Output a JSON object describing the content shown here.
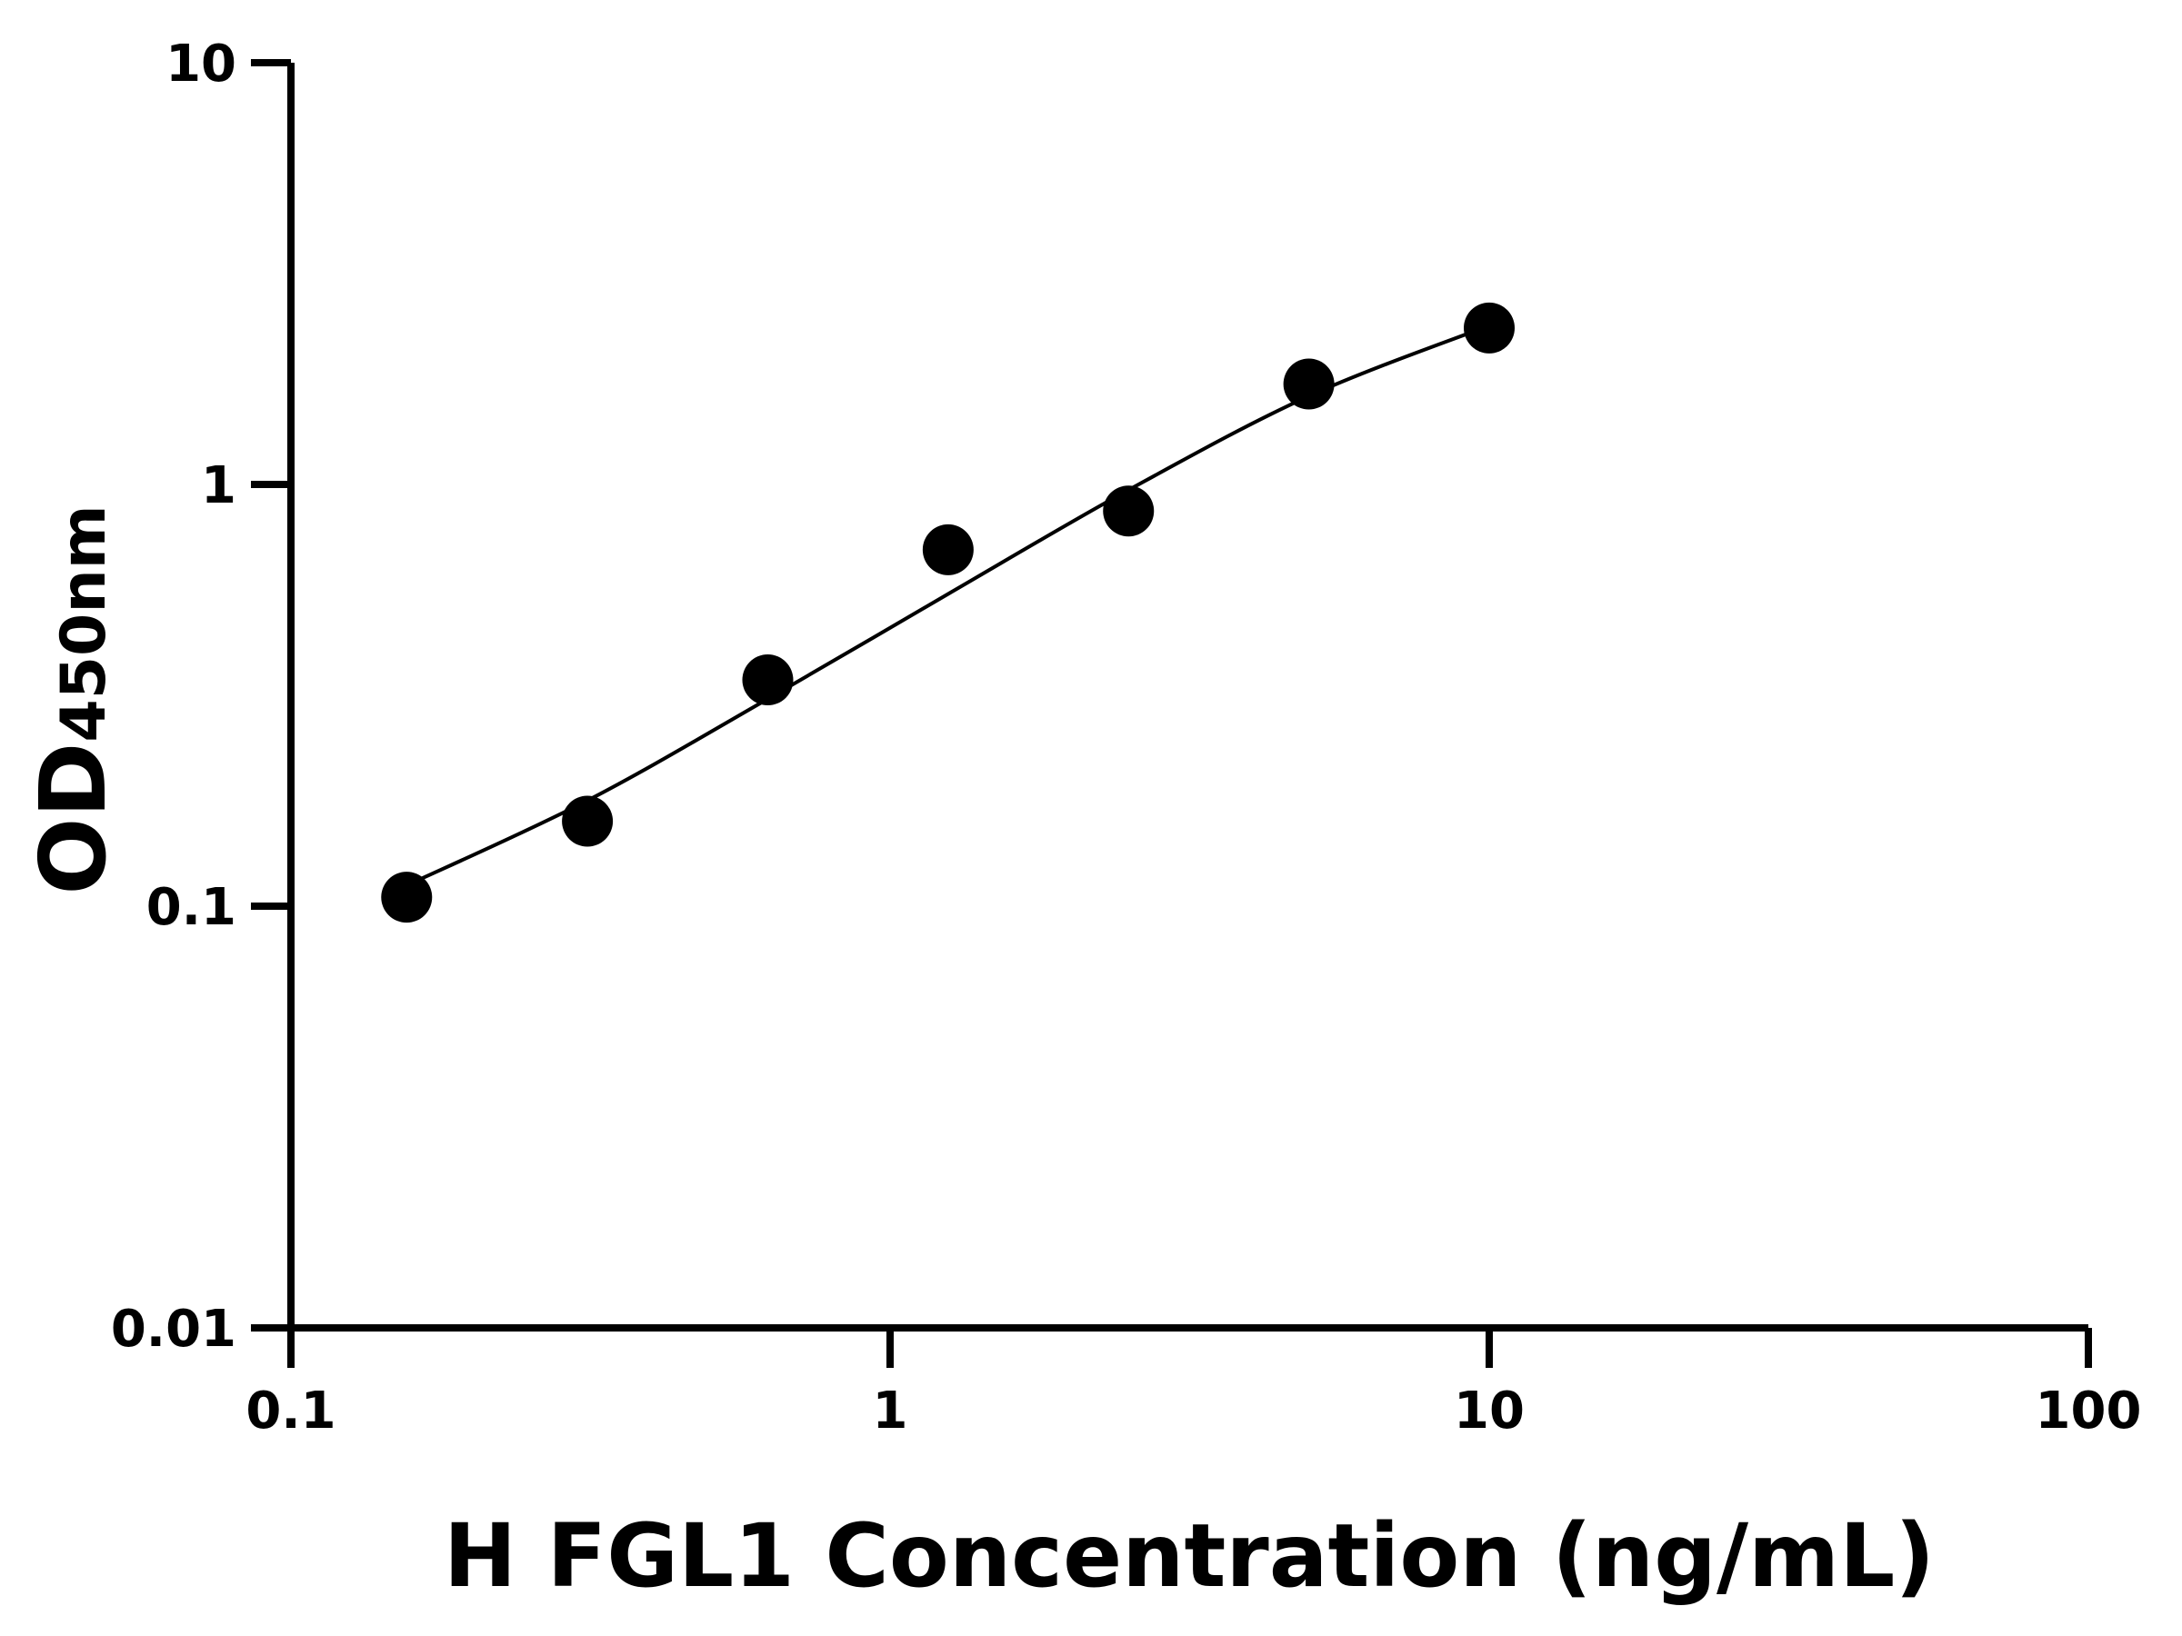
{
  "chart_data": {
    "type": "scatter",
    "title": "",
    "xlabel": "H FGL1 Concentration (ng/mL)",
    "ylabel": "OD",
    "ylabel_subscript": "450nm",
    "xscale": "log",
    "yscale": "log",
    "xlim": [
      0.1,
      100
    ],
    "ylim": [
      0.01,
      10
    ],
    "xticks": [
      "0.1",
      "1",
      "10",
      "100"
    ],
    "yticks": [
      "0.01",
      "0.1",
      "1",
      "10"
    ],
    "grid": false,
    "legend": "none",
    "marker_color": "#000000",
    "points": [
      {
        "x": 0.156,
        "y": 0.105
      },
      {
        "x": 0.3125,
        "y": 0.159
      },
      {
        "x": 0.625,
        "y": 0.344
      },
      {
        "x": 1.25,
        "y": 0.7
      },
      {
        "x": 2.5,
        "y": 0.865
      },
      {
        "x": 5,
        "y": 1.73
      },
      {
        "x": 10,
        "y": 2.35
      }
    ],
    "fit_curve": [
      {
        "x": 0.156,
        "y": 0.112
      },
      {
        "x": 0.3125,
        "y": 0.178
      },
      {
        "x": 0.625,
        "y": 0.31
      },
      {
        "x": 1.25,
        "y": 0.55
      },
      {
        "x": 2.5,
        "y": 0.97
      },
      {
        "x": 5,
        "y": 1.62
      },
      {
        "x": 10,
        "y": 2.38
      }
    ]
  }
}
